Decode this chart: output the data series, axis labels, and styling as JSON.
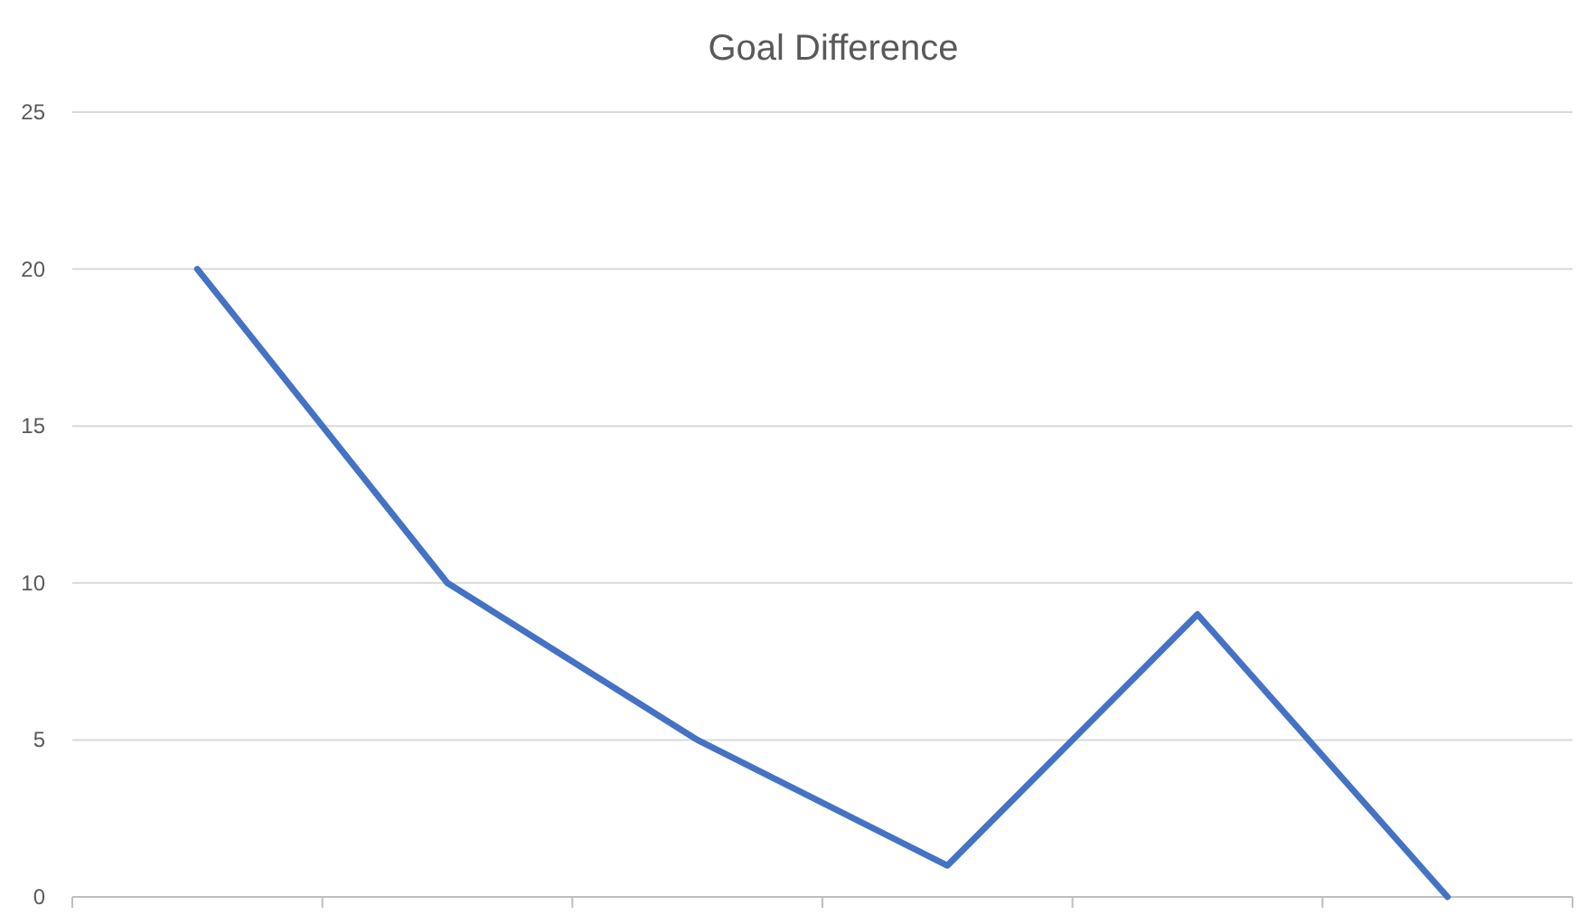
{
  "chart_data": {
    "type": "line",
    "title": "Goal Difference",
    "categories": [
      null,
      null,
      null,
      null,
      null,
      null
    ],
    "values": [
      20,
      10,
      5,
      1,
      9,
      0
    ],
    "color": "#4472c4",
    "ylim": [
      0,
      25
    ],
    "yticks": [
      0,
      5,
      10,
      15,
      20,
      25
    ],
    "grid": "y",
    "marker": "none"
  }
}
